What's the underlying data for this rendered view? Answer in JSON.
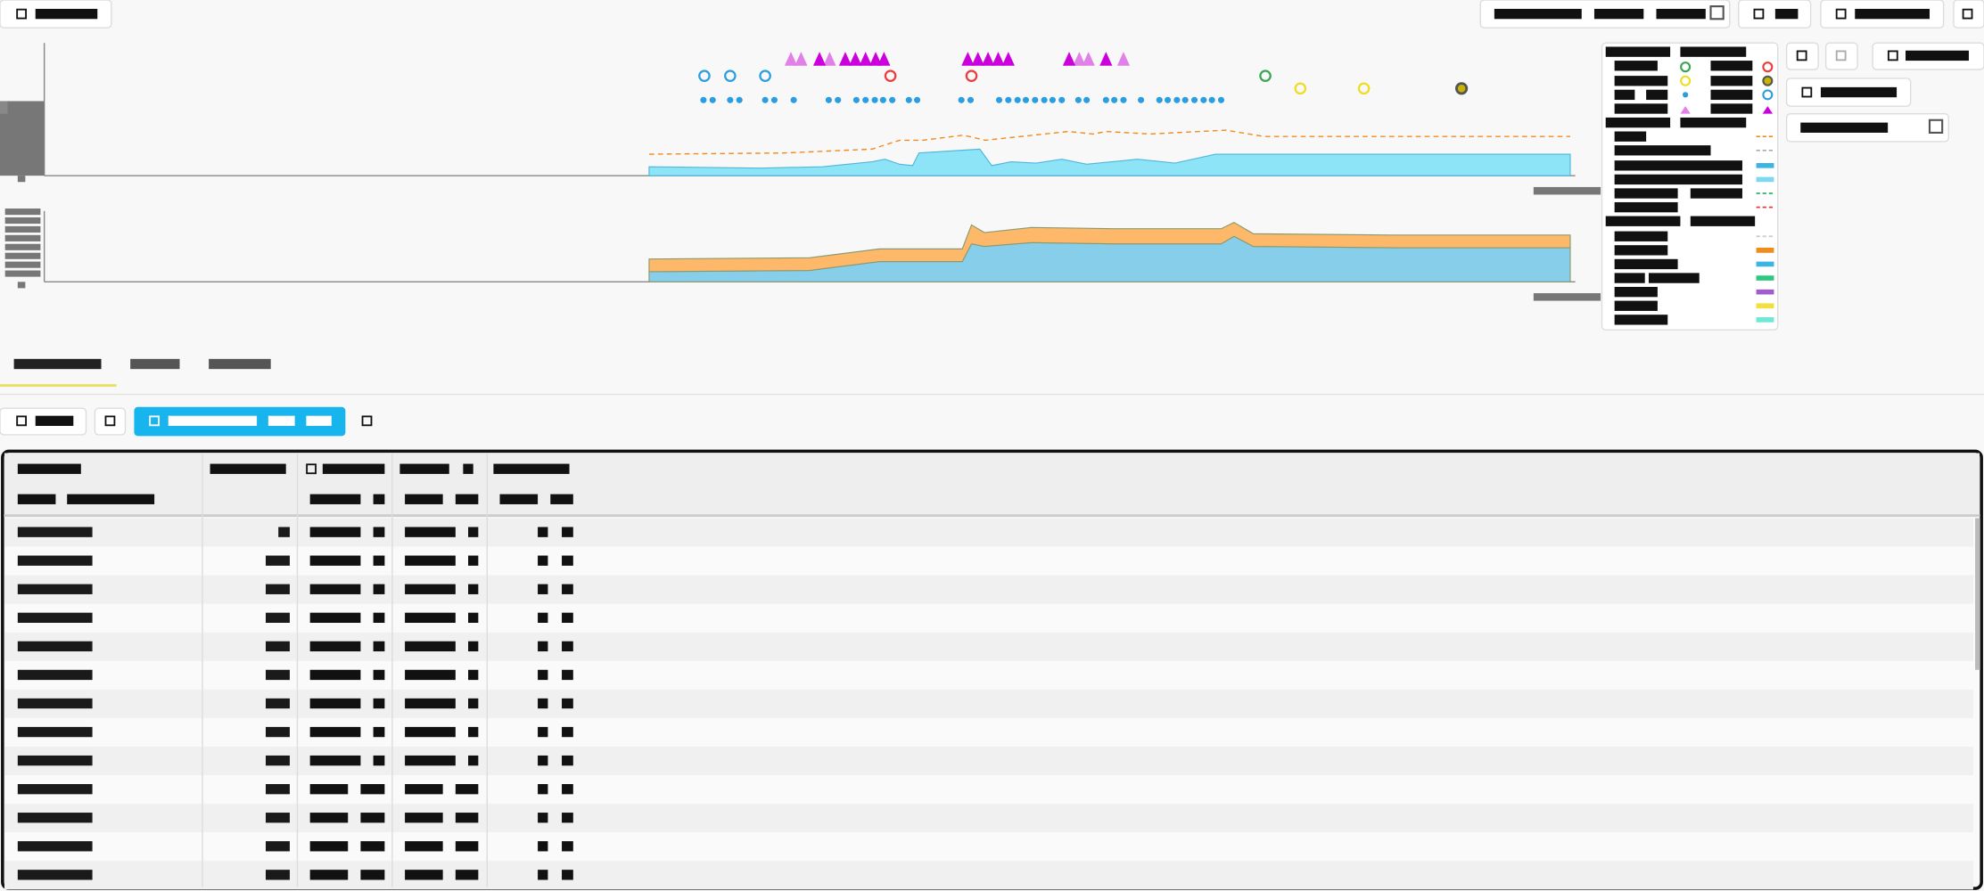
{
  "chart_data": [
    {
      "type": "area",
      "xlim": [
        0,
        100
      ],
      "ylim": [
        0,
        100
      ],
      "x": [
        0,
        12,
        18.8,
        24.2,
        25.6,
        27.2,
        28.6,
        29.3,
        35.9,
        37.2,
        39.3,
        42.0,
        44.8,
        47.5,
        53.0,
        57.1,
        61.5,
        100
      ],
      "series": [
        {
          "color": "#8ee4f7",
          "values": [
            6.7,
            5.7,
            6.7,
            10.5,
            12.4,
            8.6,
            7.6,
            17.1,
            20,
            7.6,
            10.5,
            9.5,
            12.4,
            8.6,
            12.4,
            9.5,
            16.2,
            16.2
          ]
        }
      ],
      "lines": [
        {
          "color": "#f08c1e",
          "x": [
            0,
            14.7,
            24.2,
            27.2,
            29.7,
            34.1,
            36.5,
            45.5,
            48.2,
            49.6,
            54.4,
            62.6,
            66.8,
            100
          ],
          "values": [
            16.2,
            17.1,
            20,
            26.7,
            26.7,
            30.5,
            26.7,
            33.3,
            31.4,
            33.3,
            31.4,
            34.3,
            29.5,
            29.5
          ]
        }
      ],
      "markers": [
        {
          "shape": "circle",
          "color": "#2a9ee0",
          "y": 75.2,
          "x": [
            6.0,
            8.8,
            12.6
          ]
        },
        {
          "shape": "circle",
          "color": "#ee3b3b",
          "y": 75.2,
          "x": [
            26.2,
            35.0
          ]
        },
        {
          "shape": "circle",
          "color": "#3aa655",
          "y": 75.2,
          "x": [
            66.9
          ]
        },
        {
          "shape": "circle",
          "color": "#eedd22",
          "y": 65.7,
          "x": [
            70.7,
            77.6
          ]
        },
        {
          "shape": "ring-dark",
          "color": "#555555",
          "y": 65.7,
          "x": [
            88.2
          ]
        },
        {
          "shape": "dot",
          "color": "#2a9ee0",
          "y": 57,
          "x": [
            5.9,
            6.9,
            8.8,
            9.8,
            12.6,
            13.6,
            15.7,
            19.5,
            20.5,
            22.5,
            23.5,
            24.5,
            25.4,
            26.4,
            28.2,
            29.1,
            33.9,
            34.9,
            38.0,
            39.0,
            40.0,
            40.9,
            41.9,
            42.9,
            43.8,
            44.8,
            46.6,
            47.5,
            49.6,
            50.5,
            51.5,
            53.4,
            55.4,
            56.3,
            57.3,
            58.2,
            59.2,
            60.2,
            61.1,
            62.1
          ]
        },
        {
          "shape": "triangle",
          "color": "#e080e8",
          "y": 87.6,
          "x": [
            15.4,
            16.5,
            19.6,
            46.7,
            47.7,
            51.5
          ]
        },
        {
          "shape": "triangle",
          "color": "#cc00dd",
          "y": 87.6,
          "x": [
            18.5,
            21.3,
            22.4,
            23.5,
            24.6,
            25.5,
            34.6,
            35.7,
            36.8,
            37.9,
            39.0,
            45.6,
            49.6
          ]
        }
      ]
    },
    {
      "type": "stacked-area",
      "xlim": [
        0,
        100
      ],
      "ylim": [
        0,
        100
      ],
      "x": [
        0,
        17.4,
        25,
        34,
        35.0,
        36.4,
        41.5,
        50.4,
        62.1,
        63.5,
        65.6,
        80.8,
        100
      ],
      "series": [
        {
          "color": "#87ceeb",
          "values": [
            14.3,
            16.1,
            28.6,
            28.6,
            53.6,
            50,
            55.4,
            53.6,
            53.6,
            64.3,
            50,
            48.2,
            48.2
          ]
        },
        {
          "color": "#fdb86a",
          "values": [
            17.9,
            17.9,
            17.9,
            17.9,
            26.8,
            19.6,
            21.4,
            21.4,
            21.4,
            19.6,
            17.9,
            17.9,
            17.9
          ]
        }
      ]
    }
  ]
}
